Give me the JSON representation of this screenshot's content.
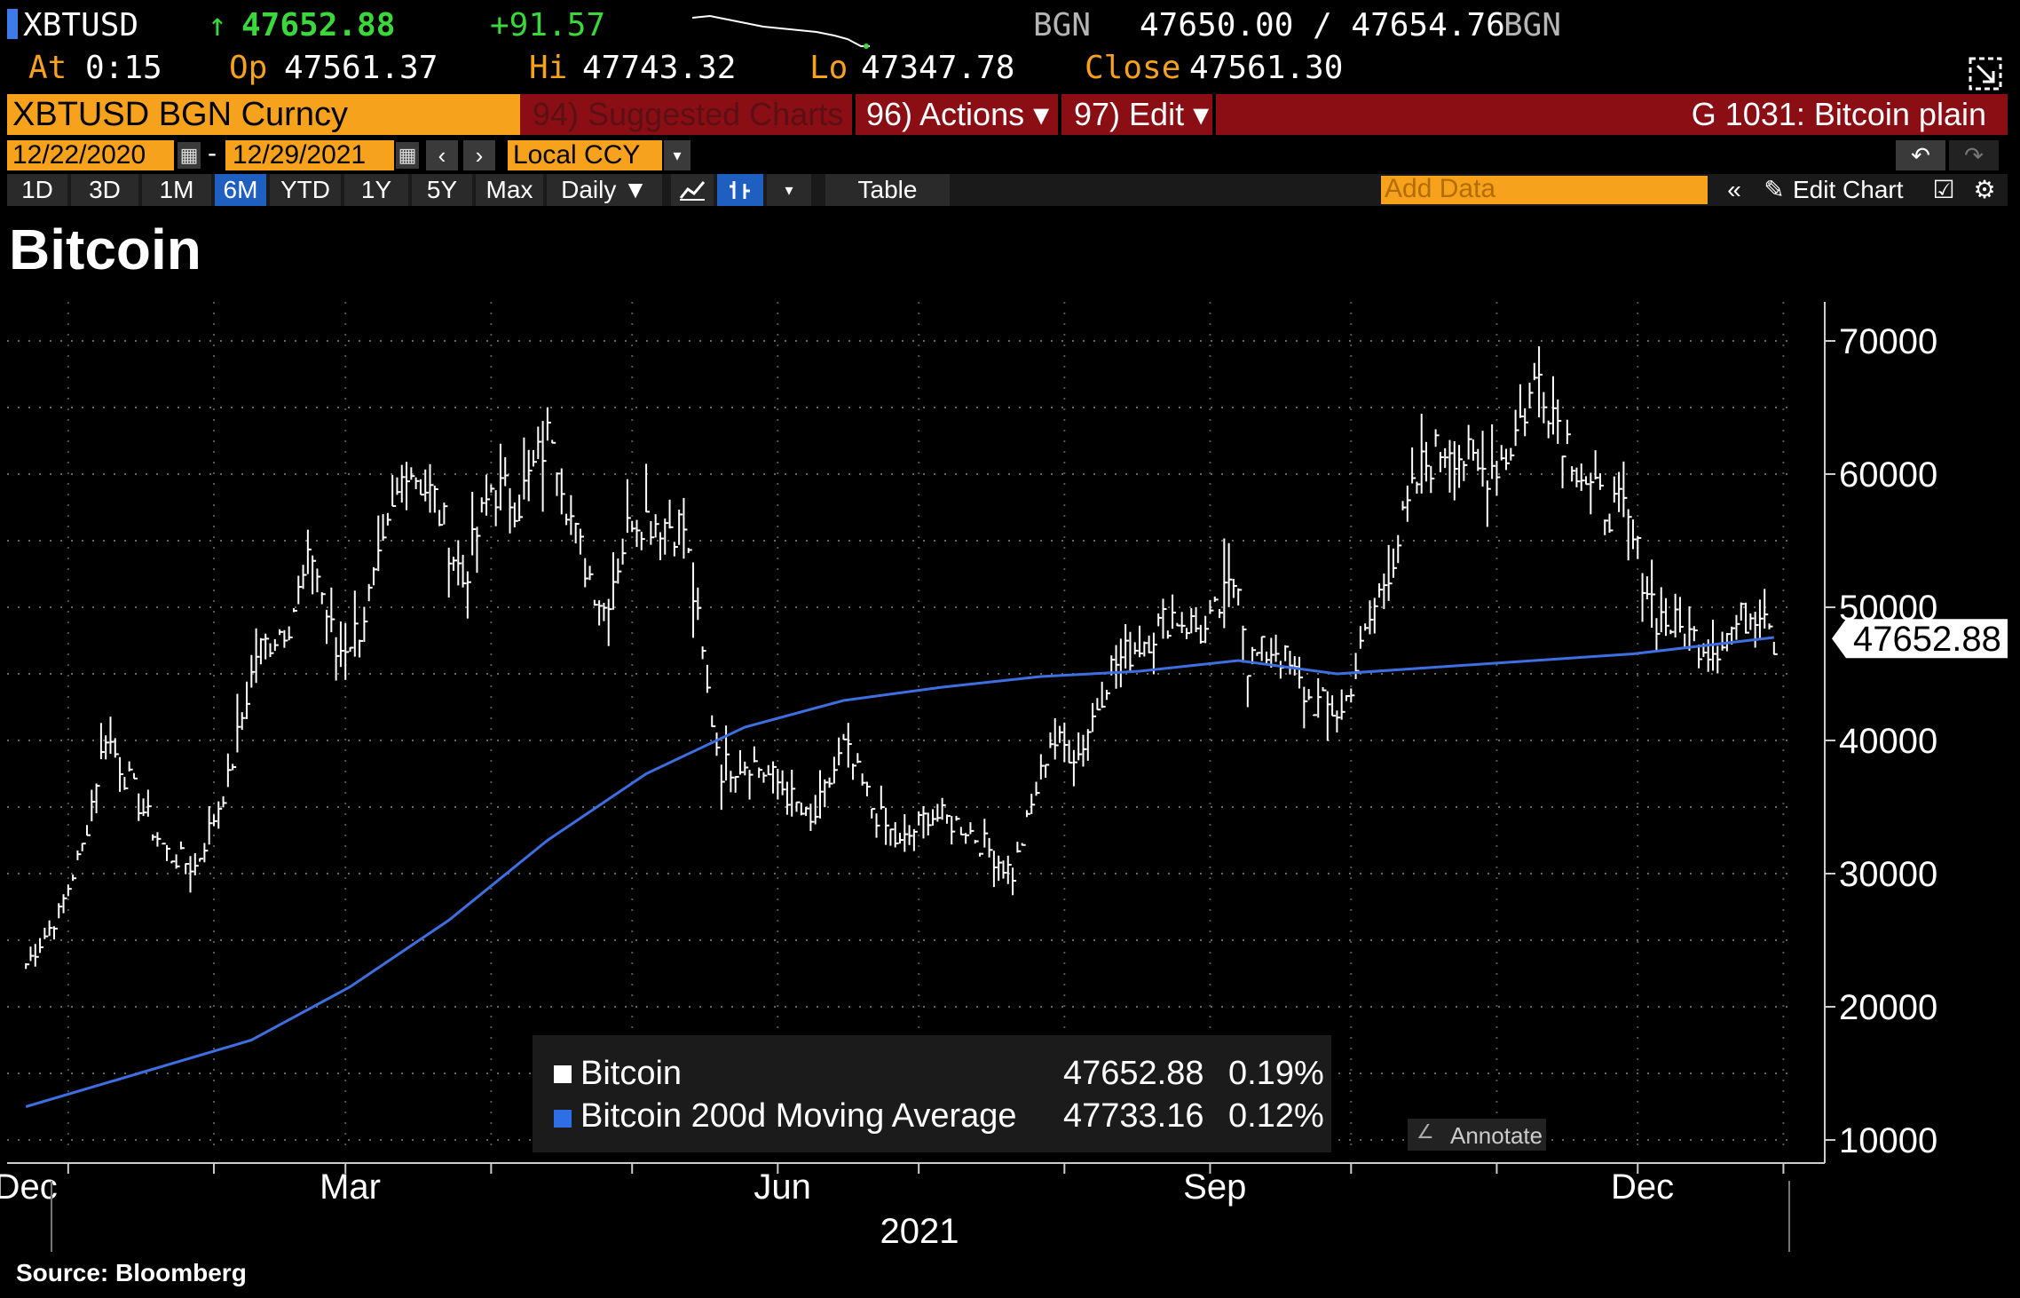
{
  "header": {
    "ticker": "XBTUSD",
    "arrow": "↑",
    "last": "47652.88",
    "change": "+91.57",
    "source1": "BGN",
    "bid_ask": "47650.00 / 47654.76",
    "source2": "BGN",
    "at_label": "At",
    "at_value": "0:15",
    "op_label": "Op",
    "op_value": "47561.37",
    "hi_label": "Hi",
    "hi_value": "47743.32",
    "lo_label": "Lo",
    "lo_value": "47347.78",
    "close_label": "Close",
    "close_value": "47561.30"
  },
  "menu": {
    "security": "XBTUSD BGN Curncy",
    "suggested": "94) Suggested Charts",
    "actions": "96) Actions ▾",
    "edit": "97) Edit ▾",
    "chart_id": "G 1031: Bitcoin plain"
  },
  "dates": {
    "start": "12/22/2020",
    "end": "12/29/2021",
    "currency": "Local CCY"
  },
  "toolbar": {
    "periods": [
      "1D",
      "3D",
      "1M",
      "6M",
      "YTD",
      "1Y",
      "5Y",
      "Max"
    ],
    "selected": "6M",
    "frequency": "Daily ▼",
    "table": "Table",
    "add_data": "Add Data",
    "edit_chart": "Edit Chart"
  },
  "legend": {
    "series1_name": "Bitcoin",
    "series1_value": "47652.88",
    "series1_pct": "0.19%",
    "series2_name": "Bitcoin 200d Moving Average",
    "series2_value": "47733.16",
    "series2_pct": "0.12%",
    "annotate": "Annotate"
  },
  "source": "Source:  Bloomberg",
  "colors": {
    "accent_orange": "#f7a21c",
    "menu_red": "#8b0e14",
    "ma_blue": "#3d6fe0",
    "price_white": "#ffffff",
    "up_green": "#3ad83a"
  },
  "chart_data": {
    "type": "line",
    "title": "Bitcoin",
    "ylim": [
      10000,
      70000
    ],
    "yticks": [
      10000,
      20000,
      30000,
      40000,
      50000,
      60000,
      70000
    ],
    "ytick_labels": [
      "10000",
      "20000",
      "30000",
      "40000",
      "50000",
      "60000",
      "70000"
    ],
    "xtick_labels": [
      "Dec",
      "Mar",
      "Jun",
      "Sep",
      "Dec"
    ],
    "xtick_dates": [
      "2020-12-22",
      "2021-03-01",
      "2021-06-01",
      "2021-09-01",
      "2021-12-01"
    ],
    "x_year_label": "2021",
    "last_value_label": "47652.88",
    "grid": true,
    "series": [
      {
        "name": "Bitcoin",
        "color": "#ffffff",
        "x": [
          "2020-12-22",
          "2020-12-29",
          "2021-01-03",
          "2021-01-08",
          "2021-01-14",
          "2021-01-21",
          "2021-01-27",
          "2021-02-03",
          "2021-02-09",
          "2021-02-16",
          "2021-02-21",
          "2021-02-26",
          "2021-03-03",
          "2021-03-08",
          "2021-03-13",
          "2021-03-19",
          "2021-03-25",
          "2021-03-31",
          "2021-04-06",
          "2021-04-13",
          "2021-04-18",
          "2021-04-24",
          "2021-04-30",
          "2021-05-06",
          "2021-05-11",
          "2021-05-16",
          "2021-05-19",
          "2021-05-25",
          "2021-06-01",
          "2021-06-07",
          "2021-06-14",
          "2021-06-20",
          "2021-06-26",
          "2021-07-02",
          "2021-07-10",
          "2021-07-20",
          "2021-07-28",
          "2021-08-03",
          "2021-08-10",
          "2021-08-15",
          "2021-08-23",
          "2021-08-30",
          "2021-09-06",
          "2021-09-08",
          "2021-09-14",
          "2021-09-21",
          "2021-09-28",
          "2021-10-04",
          "2021-10-10",
          "2021-10-15",
          "2021-10-21",
          "2021-10-27",
          "2021-11-02",
          "2021-11-09",
          "2021-11-15",
          "2021-11-21",
          "2021-11-27",
          "2021-12-04",
          "2021-12-10",
          "2021-12-16",
          "2021-12-22",
          "2021-12-27",
          "2021-12-29"
        ],
        "y": [
          23200,
          27000,
          32000,
          40500,
          36000,
          31500,
          30500,
          37000,
          46500,
          49000,
          54000,
          46500,
          48500,
          54000,
          61000,
          58000,
          52000,
          59000,
          58000,
          63500,
          55000,
          50000,
          57000,
          56500,
          56000,
          43500,
          38000,
          38500,
          36500,
          33500,
          39500,
          35000,
          32000,
          34500,
          33500,
          30000,
          40000,
          39000,
          45500,
          47000,
          49500,
          48000,
          52500,
          46000,
          47000,
          43000,
          42000,
          49000,
          55000,
          60500,
          62500,
          60000,
          61500,
          67500,
          62500,
          58000,
          57000,
          49500,
          48000,
          47000,
          49000,
          50500,
          47652.88
        ]
      },
      {
        "name": "Bitcoin 200d Moving Average",
        "color": "#3d6fe0",
        "x": [
          "2020-12-22",
          "2021-01-15",
          "2021-02-08",
          "2021-03-01",
          "2021-03-22",
          "2021-04-12",
          "2021-05-03",
          "2021-05-24",
          "2021-06-14",
          "2021-07-05",
          "2021-07-26",
          "2021-08-16",
          "2021-09-06",
          "2021-09-27",
          "2021-10-18",
          "2021-11-08",
          "2021-11-29",
          "2021-12-29"
        ],
        "y": [
          12500,
          15000,
          17500,
          21500,
          26500,
          32500,
          37500,
          41000,
          43000,
          44000,
          44800,
          45200,
          46000,
          45000,
          45500,
          46000,
          46500,
          47733.16
        ]
      }
    ]
  }
}
